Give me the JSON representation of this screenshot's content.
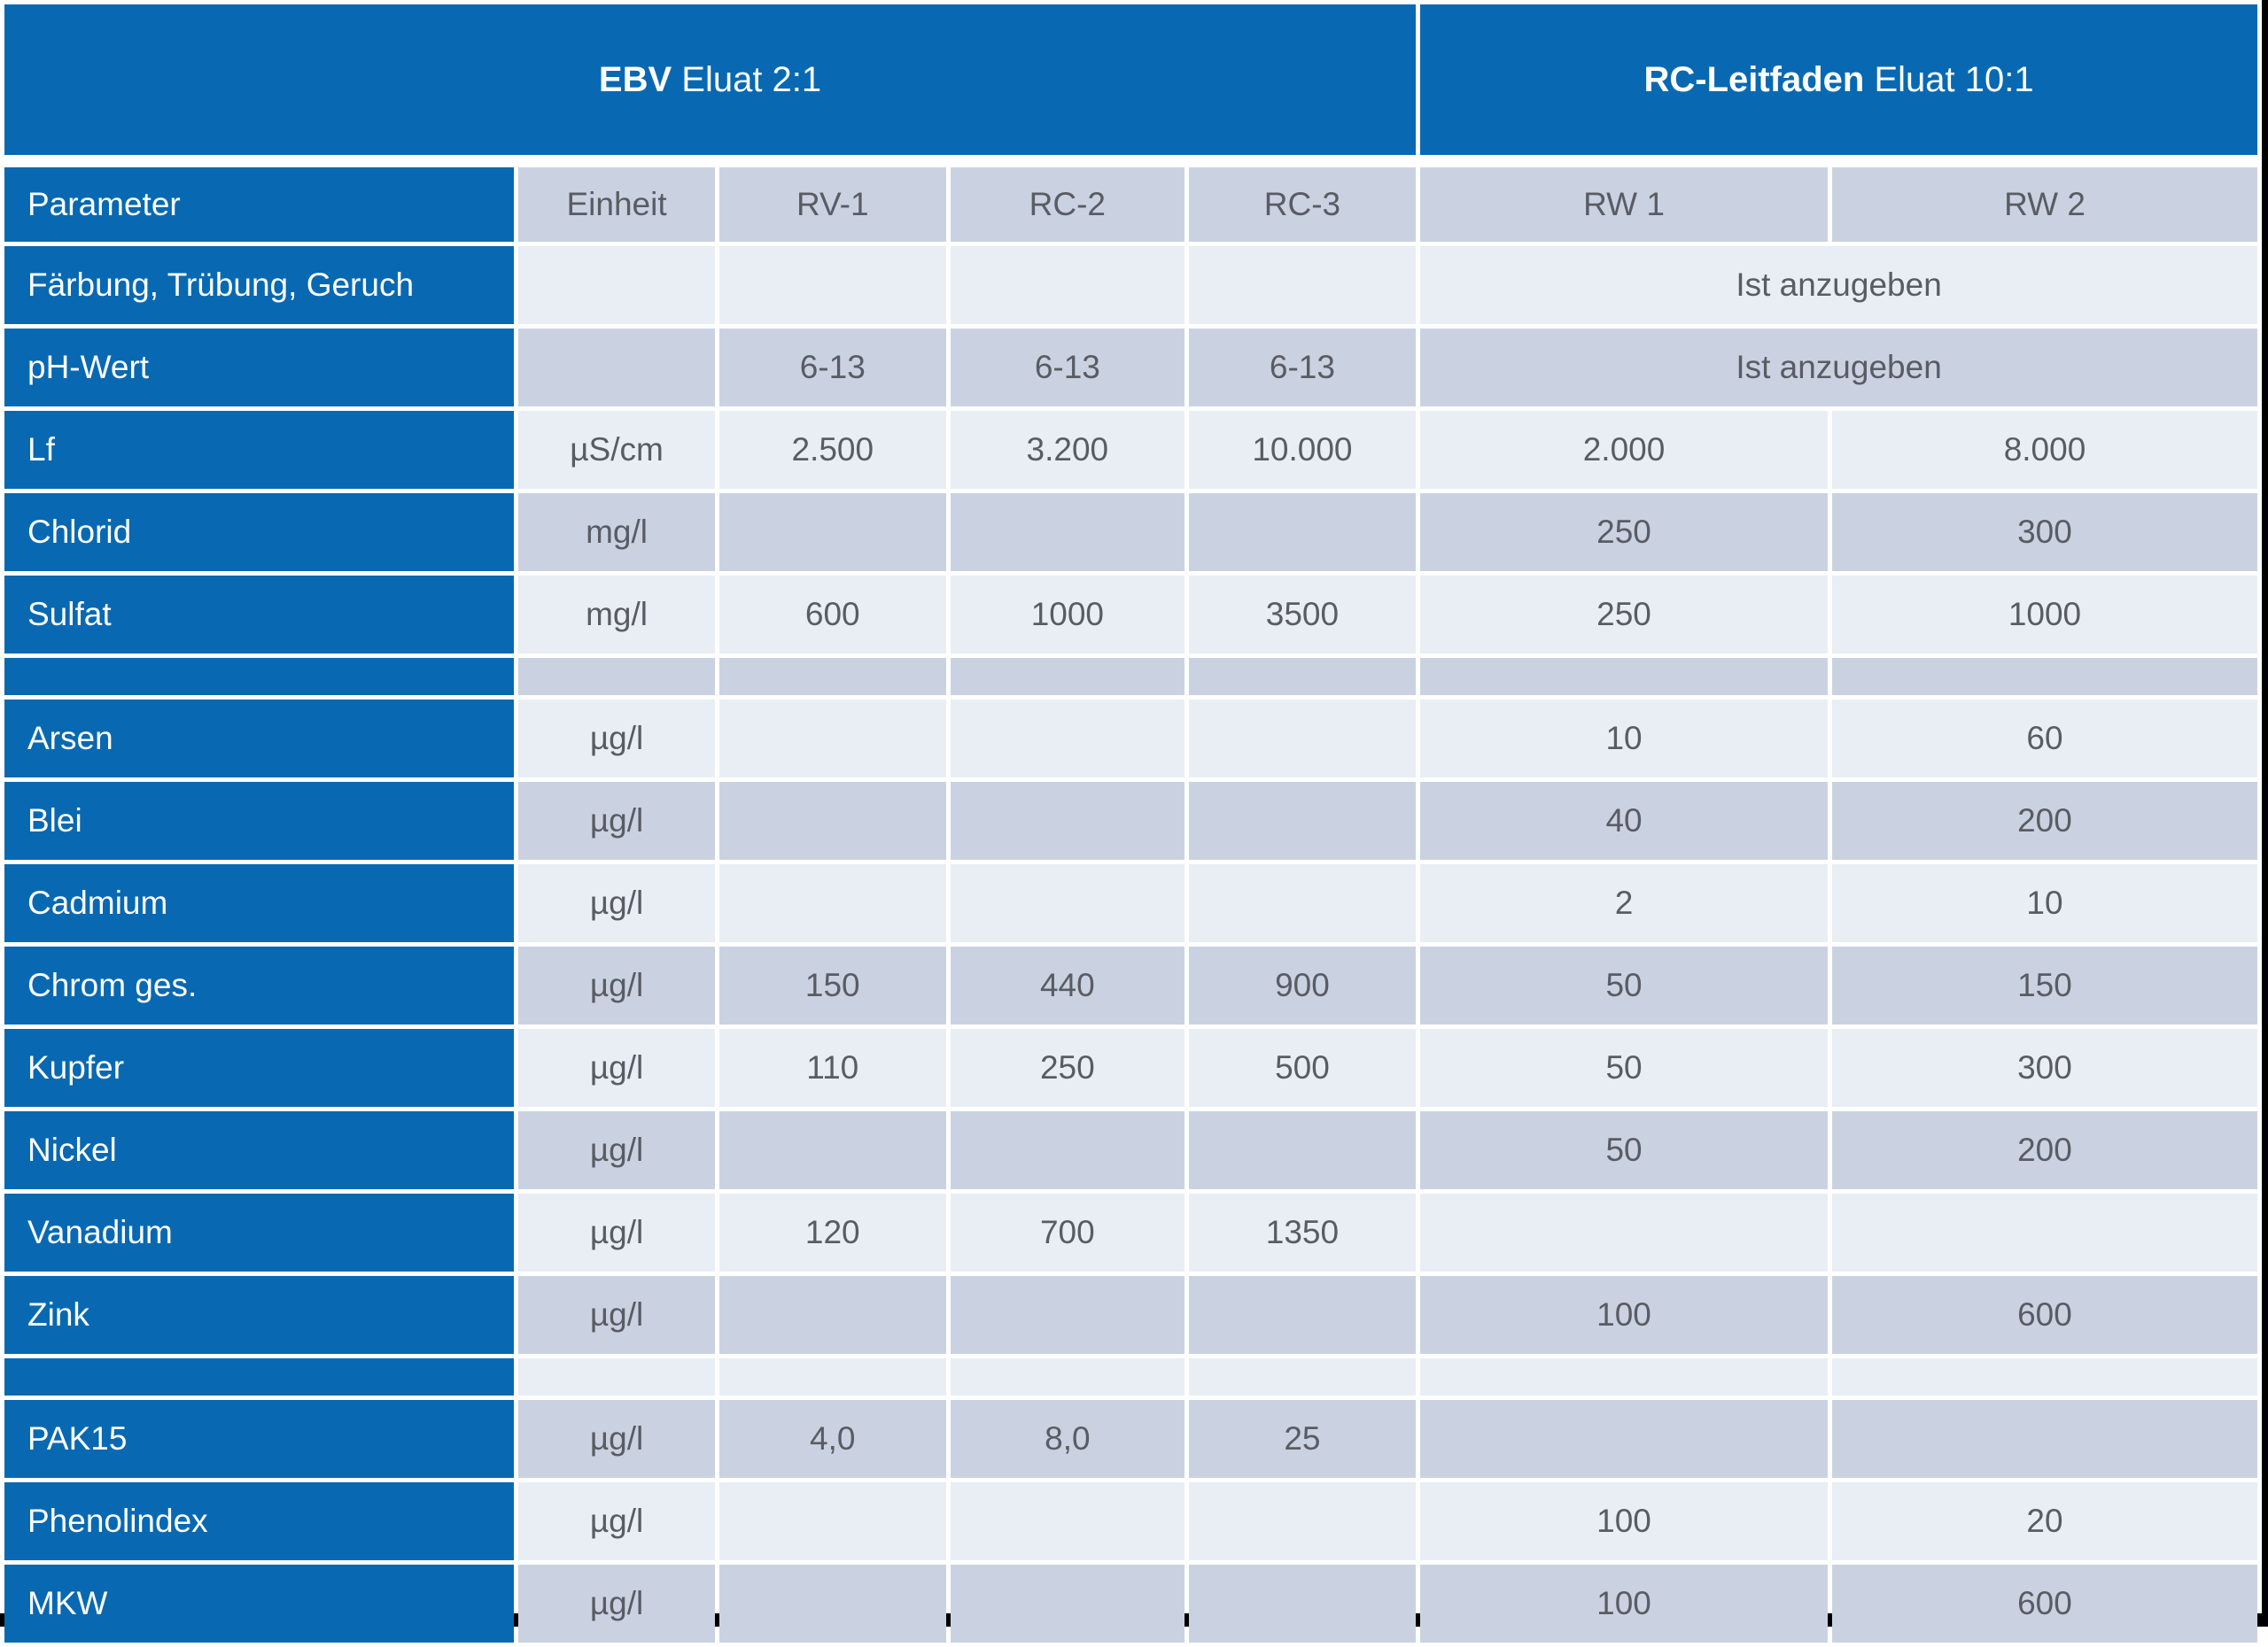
{
  "colors": {
    "header_blue": "#0869b2",
    "row_light": "#e9edf4",
    "row_dark": "#cad2e2",
    "value_text": "#595c63",
    "header_text": "#ffffff",
    "frame_edge_black": "#000000"
  },
  "chart_data": {
    "type": "table",
    "group_headers": [
      {
        "bold": "EBV",
        "rest": " Eluat 2:1"
      },
      {
        "bold": "RC-Leitfaden",
        "rest": " Eluat 10:1"
      }
    ],
    "columns": [
      "Parameter",
      "Einheit",
      "RV-1",
      "RC-2",
      "RC-3",
      "RW 1",
      "RW 2"
    ],
    "rows": [
      {
        "param": "Färbung, Trübung, Geruch",
        "einheit": "",
        "rv1": "",
        "rc2": "",
        "rc3": "",
        "rw_merged": "Ist anzugeben"
      },
      {
        "param": "pH-Wert",
        "einheit": "",
        "rv1": "6-13",
        "rc2": "6-13",
        "rc3": "6-13",
        "rw_merged": "Ist anzugeben"
      },
      {
        "param": "Lf",
        "einheit": "µS/cm",
        "rv1": "2.500",
        "rc2": "3.200",
        "rc3": "10.000",
        "rw1": "2.000",
        "rw2": "8.000"
      },
      {
        "param": "Chlorid",
        "einheit": "mg/l",
        "rv1": "",
        "rc2": "",
        "rc3": "",
        "rw1": "250",
        "rw2": "300"
      },
      {
        "param": "Sulfat",
        "einheit": "mg/l",
        "rv1": "600",
        "rc2": "1000",
        "rc3": "3500",
        "rw1": "250",
        "rw2": "1000"
      },
      {
        "spacer": true
      },
      {
        "param": "Arsen",
        "einheit": "µg/l",
        "rv1": "",
        "rc2": "",
        "rc3": "",
        "rw1": "10",
        "rw2": "60"
      },
      {
        "param": "Blei",
        "einheit": "µg/l",
        "rv1": "",
        "rc2": "",
        "rc3": "",
        "rw1": "40",
        "rw2": "200"
      },
      {
        "param": "Cadmium",
        "einheit": "µg/l",
        "rv1": "",
        "rc2": "",
        "rc3": "",
        "rw1": "2",
        "rw2": "10"
      },
      {
        "param": "Chrom ges.",
        "einheit": "µg/l",
        "rv1": "150",
        "rc2": "440",
        "rc3": "900",
        "rw1": "50",
        "rw2": "150"
      },
      {
        "param": "Kupfer",
        "einheit": "µg/l",
        "rv1": "110",
        "rc2": "250",
        "rc3": "500",
        "rw1": "50",
        "rw2": "300"
      },
      {
        "param": "Nickel",
        "einheit": "µg/l",
        "rv1": "",
        "rc2": "",
        "rc3": "",
        "rw1": "50",
        "rw2": "200"
      },
      {
        "param": "Vanadium",
        "einheit": "µg/l",
        "rv1": "120",
        "rc2": "700",
        "rc3": "1350",
        "rw1": "",
        "rw2": ""
      },
      {
        "param": "Zink",
        "einheit": "µg/l",
        "rv1": "",
        "rc2": "",
        "rc3": "",
        "rw1": "100",
        "rw2": "600"
      },
      {
        "spacer": true
      },
      {
        "param": "PAK15",
        "einheit": "µg/l",
        "rv1": "4,0",
        "rc2": "8,0",
        "rc3": "25",
        "rw1": "",
        "rw2": ""
      },
      {
        "param": "Phenolindex",
        "einheit": "µg/l",
        "rv1": "",
        "rc2": "",
        "rc3": "",
        "rw1": "100",
        "rw2": "20"
      },
      {
        "param": "MKW",
        "einheit": "µg/l",
        "rv1": "",
        "rc2": "",
        "rc3": "",
        "rw1": "100",
        "rw2": "600"
      }
    ]
  }
}
